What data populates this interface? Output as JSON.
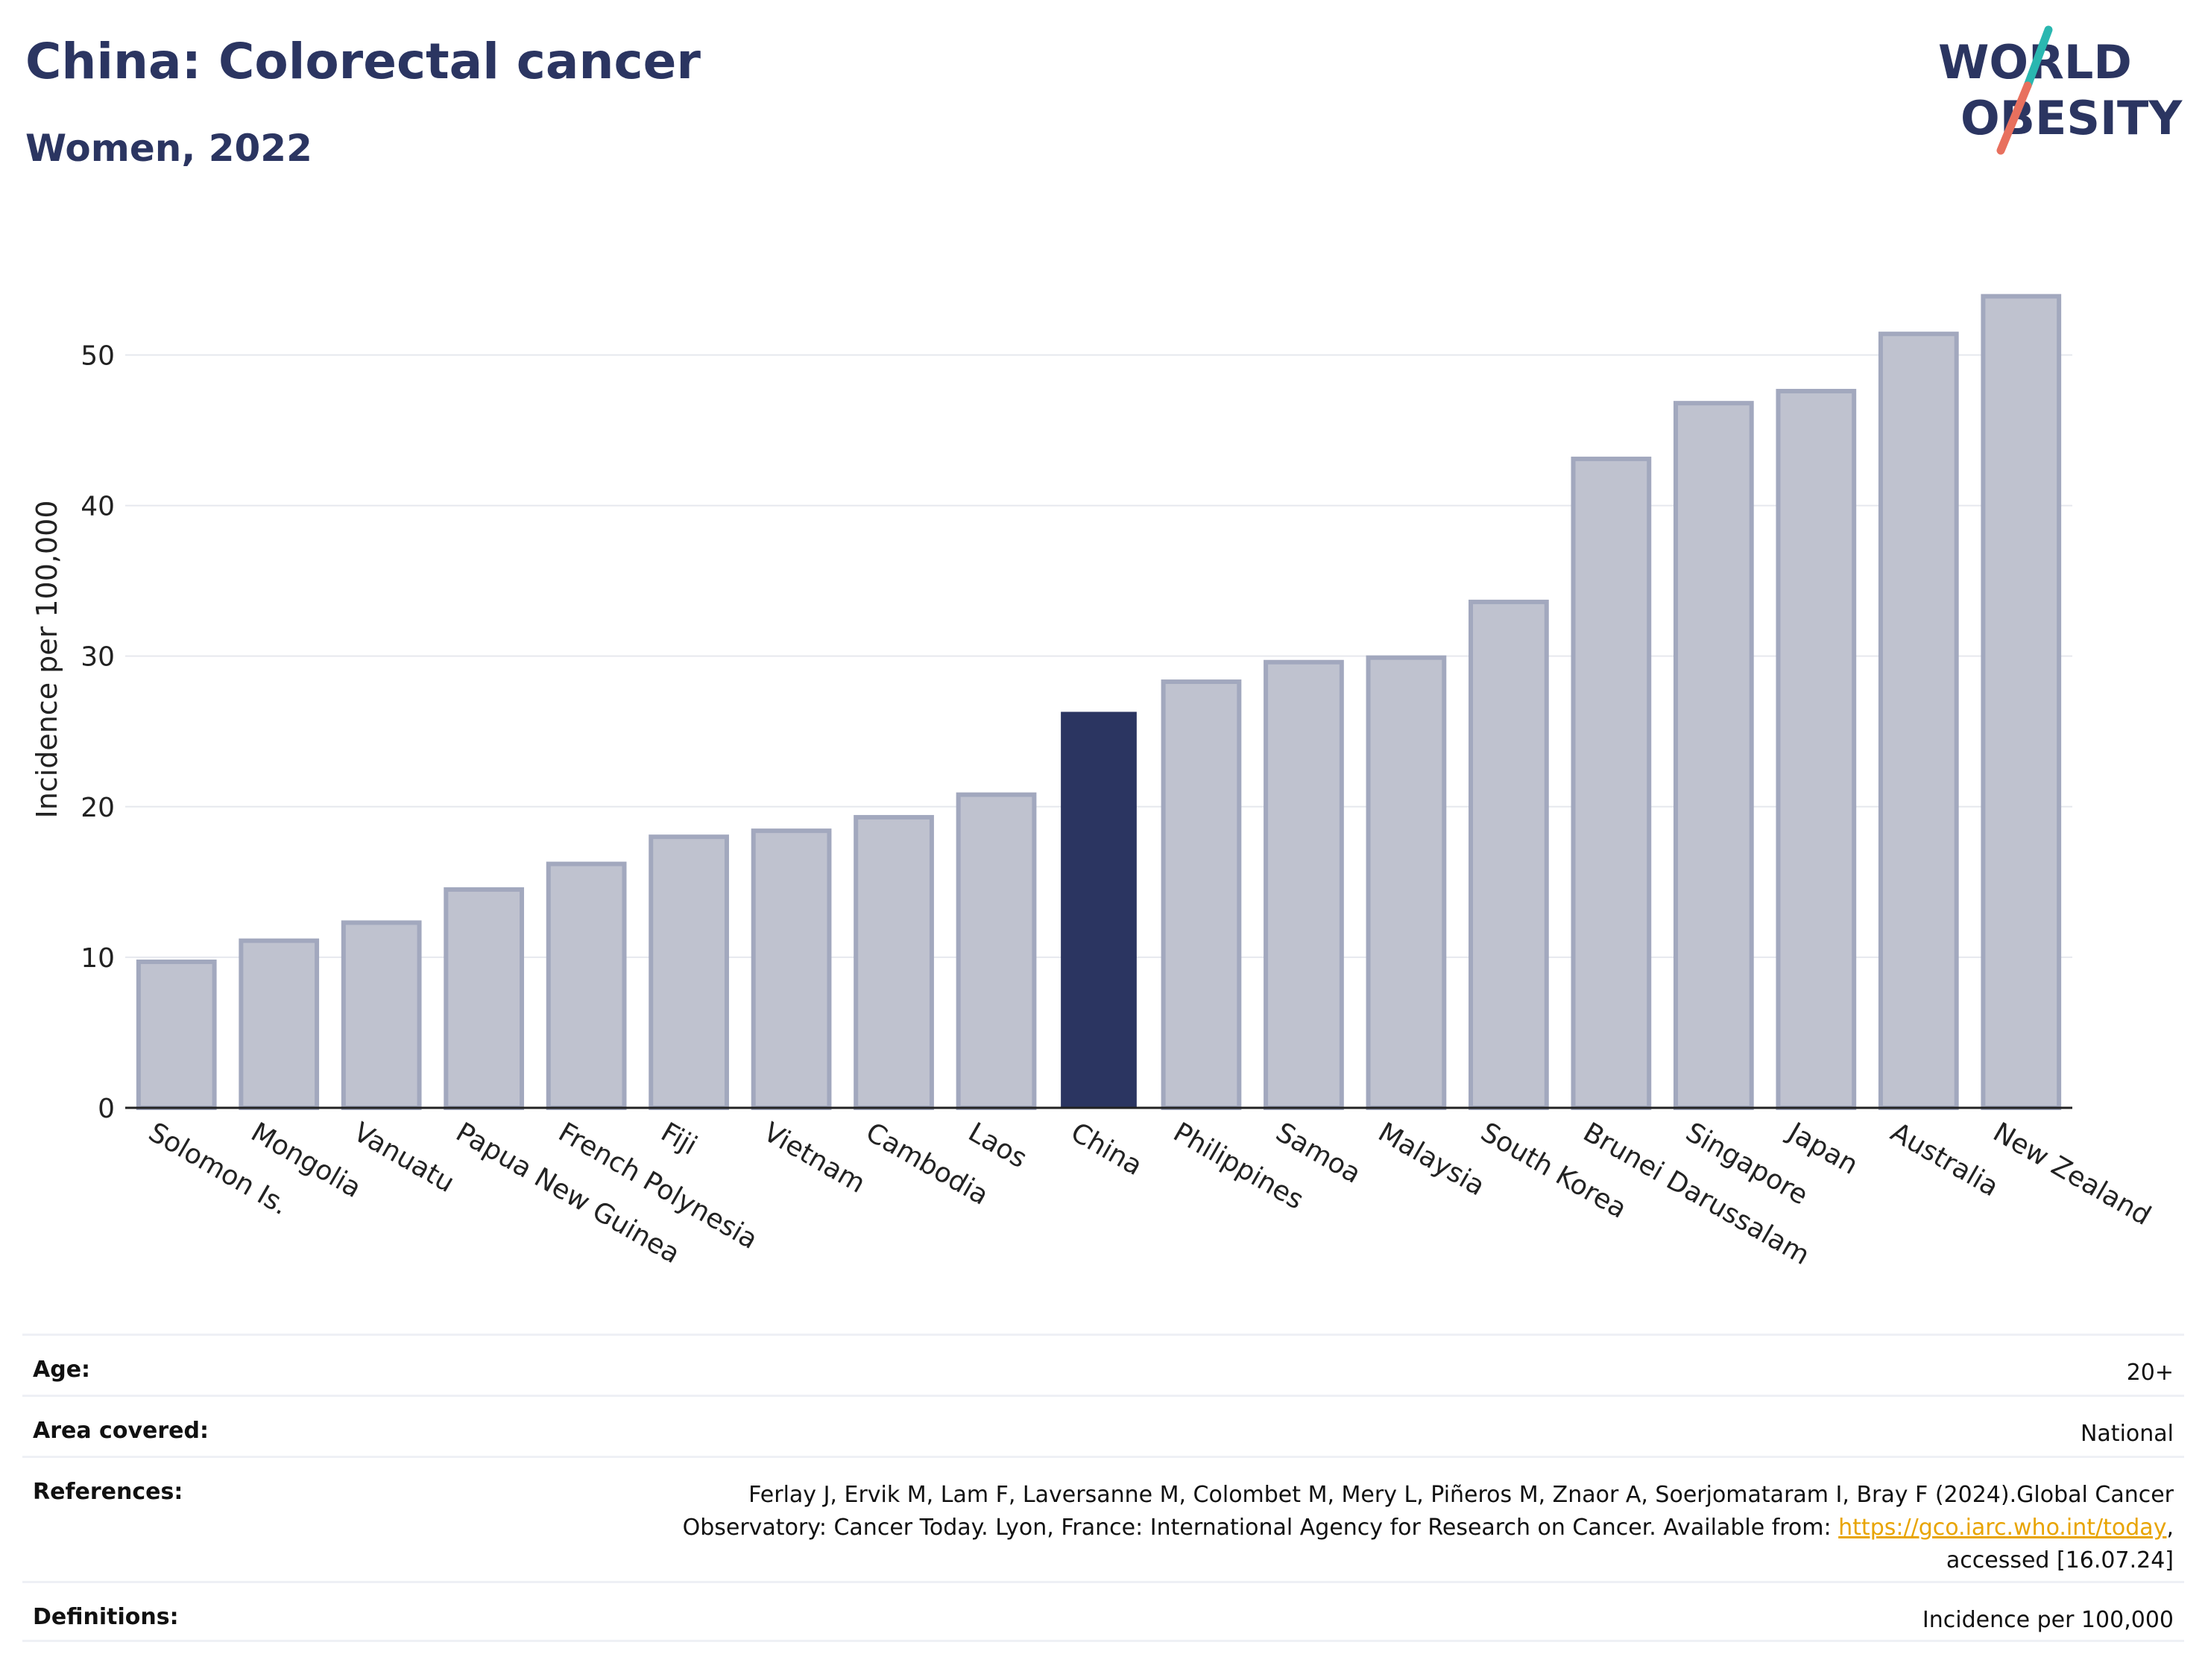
{
  "header": {
    "title": "China: Colorectal cancer",
    "subtitle": "Women, 2022"
  },
  "logo": {
    "line1": "WORLD",
    "line2": "OBESITY",
    "colors": {
      "text": "#2b3561",
      "slash_teal": "#2ab7b0",
      "slash_coral": "#e8705e"
    }
  },
  "chart_data": {
    "type": "bar",
    "categories": [
      "Solomon Is.",
      "Mongolia",
      "Vanuatu",
      "Papua New Guinea",
      "French Polynesia",
      "Fiji",
      "Vietnam",
      "Cambodia",
      "Laos",
      "China",
      "Philippines",
      "Samoa",
      "Malaysia",
      "South Korea",
      "Brunei Darussalam",
      "Singapore",
      "Japan",
      "Australia",
      "New Zealand"
    ],
    "values": [
      9.7,
      11.1,
      12.3,
      14.5,
      16.2,
      18.0,
      18.4,
      19.3,
      20.8,
      26.3,
      28.3,
      29.6,
      29.9,
      33.6,
      43.1,
      46.8,
      47.6,
      51.4,
      53.9
    ],
    "highlight": "China",
    "ylabel": "Incidence per 100,000",
    "xlabel": "",
    "ylim": [
      0,
      57
    ],
    "yticks": [
      0,
      10,
      20,
      30,
      40,
      50
    ],
    "grid": true,
    "colors": {
      "bar": "#bfc2cf",
      "bar_border": "#a2a8be",
      "highlight": "#2b3561",
      "grid": "#e6e8ee",
      "axis": "#222222"
    }
  },
  "meta": {
    "age": {
      "label": "Age:",
      "value": "20+"
    },
    "area": {
      "label": "Area covered:",
      "value": "National"
    },
    "references": {
      "label": "References:",
      "line1": "Ferlay J, Ervik M, Lam F, Laversanne M, Colombet M, Mery L, Piñeros M, Znaor A, Soerjomataram I, Bray F (2024).Global Cancer",
      "line2_prefix": "Observatory: Cancer Today. Lyon, France: International Agency for Research on Cancer. Available from: ",
      "link": "https://gco.iarc.who.int/today",
      "line2_suffix": ",",
      "line3": "accessed [16.07.24]"
    },
    "definitions": {
      "label": "Definitions:",
      "value": "Incidence per 100,000"
    }
  }
}
